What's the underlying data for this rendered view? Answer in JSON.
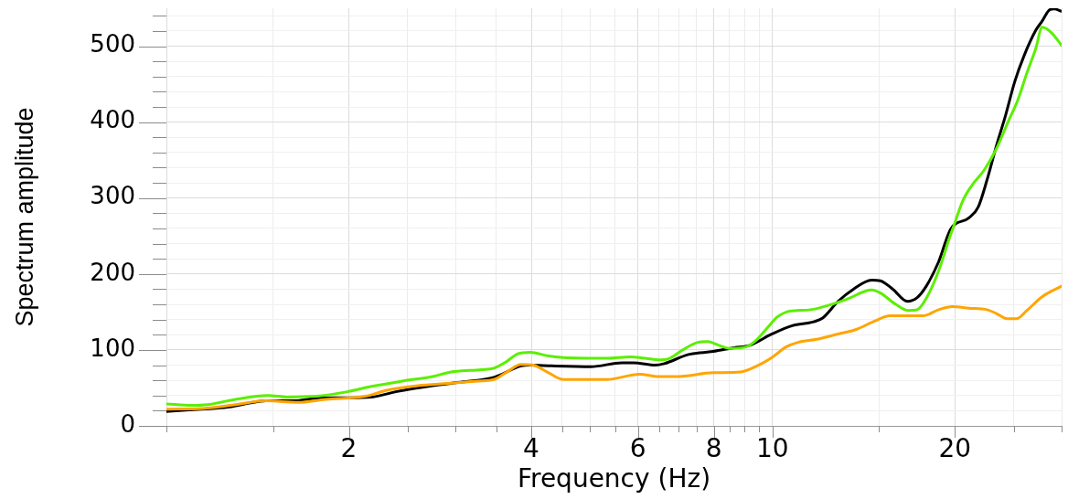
{
  "chart_data": {
    "type": "line",
    "xlabel": "Frequency (Hz)",
    "ylabel": "Spectrum amplitude",
    "log": "x",
    "grid": true,
    "xlim": [
      1,
      30
    ],
    "ylim": [
      0,
      550
    ],
    "xticks": [
      {
        "value": 1,
        "label": null
      },
      {
        "value": 1.5,
        "label": null
      },
      2,
      {
        "value": 2.5,
        "label": null
      },
      {
        "value": 3,
        "label": null
      },
      {
        "value": 3.5,
        "label": null
      },
      4,
      {
        "value": 4.5,
        "label": null
      },
      {
        "value": 5,
        "label": null
      },
      {
        "value": 5.5,
        "label": null
      },
      6,
      {
        "value": 6.5,
        "label": null
      },
      {
        "value": 7,
        "label": null
      },
      {
        "value": 7.5,
        "label": null
      },
      8,
      {
        "value": 8.5,
        "label": null
      },
      {
        "value": 9,
        "label": null
      },
      {
        "value": 9.5,
        "label": null
      },
      10,
      {
        "value": 15,
        "label": null
      },
      20,
      {
        "value": 25,
        "label": null
      },
      {
        "value": 30,
        "label": null
      }
    ],
    "yticks": [
      0,
      {
        "value": 20,
        "label": null
      },
      {
        "value": 40,
        "label": null
      },
      {
        "value": 60,
        "label": null
      },
      {
        "value": 80,
        "label": null
      },
      100,
      {
        "value": 120,
        "label": null
      },
      {
        "value": 140,
        "label": null
      },
      {
        "value": 160,
        "label": null
      },
      {
        "value": 180,
        "label": null
      },
      200,
      {
        "value": 220,
        "label": null
      },
      {
        "value": 240,
        "label": null
      },
      {
        "value": 260,
        "label": null
      },
      {
        "value": 280,
        "label": null
      },
      300,
      {
        "value": 320,
        "label": null
      },
      {
        "value": 340,
        "label": null
      },
      {
        "value": 360,
        "label": null
      },
      {
        "value": 380,
        "label": null
      },
      400,
      {
        "value": 420,
        "label": null
      },
      {
        "value": 440,
        "label": null
      },
      {
        "value": 460,
        "label": null
      },
      {
        "value": 480,
        "label": null
      },
      500,
      {
        "value": 520,
        "label": null
      },
      {
        "value": 540,
        "label": null
      }
    ],
    "series": [
      {
        "color": "#ffa500",
        "x": [
          1,
          1.15,
          1.3,
          1.46,
          1.65,
          1.83,
          2.13,
          2.31,
          2.6,
          2.91,
          3.27,
          3.47,
          3.63,
          3.85,
          4.03,
          4.27,
          4.52,
          4.85,
          5.32,
          6.04,
          6.48,
          6.94,
          7.98,
          8.86,
          9.38,
          9.98,
          10.53,
          11.02,
          11.83,
          12.83,
          13.75,
          14.74,
          15.62,
          16.74,
          17.74,
          18.8,
          19.8,
          21.1,
          22.6,
          23.42,
          24.4,
          25.25,
          26.3,
          27.86,
          30
        ],
        "values": [
          22,
          23,
          28,
          33,
          31,
          35,
          39,
          47,
          53,
          56,
          59,
          61,
          70,
          81,
          80,
          70,
          61,
          61,
          61,
          68,
          65,
          65,
          70,
          71,
          78,
          90,
          104,
          110,
          114,
          121,
          127,
          138,
          145,
          145,
          145,
          153,
          157,
          155,
          153,
          148,
          141,
          141,
          152,
          170,
          184
        ]
      },
      {
        "color": "#5bef00",
        "x": [
          1,
          1.1,
          1.17,
          1.3,
          1.47,
          1.58,
          1.77,
          1.99,
          2.18,
          2.45,
          2.75,
          2.95,
          3.31,
          3.47,
          3.63,
          3.8,
          3.98,
          4.27,
          4.52,
          5.32,
          5.84,
          6.04,
          6.48,
          6.72,
          7.11,
          7.53,
          7.82,
          8.16,
          8.48,
          9.04,
          9.38,
          9.83,
          10.17,
          10.41,
          10.66,
          11.56,
          12.39,
          13.28,
          14.57,
          15.07,
          15.98,
          16.74,
          17.33,
          17.94,
          18.8,
          19.68,
          19.89,
          20.6,
          21.35,
          22.36,
          23.42,
          24.5,
          25.4,
          26.3,
          27.2,
          27.86,
          28.85,
          30
        ],
        "values": [
          29,
          27,
          28,
          35,
          40,
          38,
          39,
          45,
          52,
          59,
          65,
          71,
          74,
          76,
          84,
          95,
          97,
          92,
          90,
          89,
          91,
          90,
          87,
          88,
          100,
          110,
          111,
          106,
          102,
          104,
          112,
          130,
          143,
          148,
          151,
          153,
          159,
          167,
          179,
          175,
          160,
          152,
          153,
          168,
          204,
          252,
          262,
          296,
          317,
          337,
          365,
          401,
          429,
          465,
          497,
          525,
          518,
          501
        ]
      },
      {
        "color": "#000000",
        "x": [
          1,
          1.09,
          1.27,
          1.37,
          1.46,
          1.63,
          1.75,
          1.94,
          2.18,
          2.39,
          2.75,
          3.09,
          3.47,
          3.85,
          3.98,
          4.32,
          5.02,
          5.64,
          5.9,
          6.41,
          6.63,
          7.27,
          7.98,
          8.65,
          9.17,
          9.98,
          10.78,
          11.69,
          12.1,
          12.83,
          13.6,
          14.57,
          15.07,
          15.8,
          16.7,
          17.33,
          17.94,
          18.8,
          19.68,
          21.1,
          21.85,
          22.6,
          23.42,
          24.25,
          25.1,
          26.0,
          27.2,
          27.86,
          28.68,
          29.17,
          30
        ],
        "values": [
          19,
          21,
          25,
          30,
          33,
          33,
          36,
          37,
          38,
          45,
          53,
          58,
          64,
          79,
          80,
          79,
          78,
          83,
          83,
          80,
          82,
          94,
          98,
          103,
          106,
          121,
          132,
          137,
          142,
          164,
          180,
          192,
          191,
          180,
          164,
          169,
          184,
          216,
          259,
          274,
          288,
          324,
          369,
          409,
          453,
          487,
          521,
          533,
          548,
          549,
          546
        ]
      }
    ]
  }
}
